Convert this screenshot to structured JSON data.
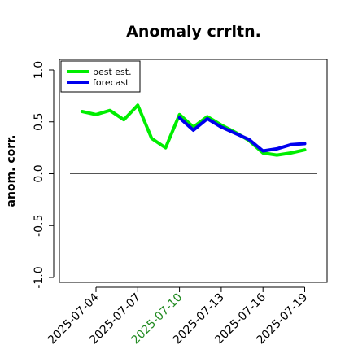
{
  "chart_data": {
    "type": "line",
    "title": "Anomaly crrltn.",
    "xlabel": "",
    "ylabel": "anom. corr.",
    "ylim": [
      -1.0,
      1.0
    ],
    "yticks": [
      "-1.0",
      "-0.5",
      "0.0",
      "0.5",
      "1.0"
    ],
    "xticks": [
      "2025-07-04",
      "2025-07-07",
      "2025-07-10",
      "2025-07-13",
      "2025-07-16",
      "2025-07-19"
    ],
    "highlight_xtick": "2025-07-10",
    "highlight_color": "#228B22",
    "reference_line": 0.0,
    "legend_position": "top-left",
    "series": [
      {
        "name": "best est.",
        "color": "#00ee00",
        "x": [
          "2025-07-03",
          "2025-07-04",
          "2025-07-05",
          "2025-07-06",
          "2025-07-07",
          "2025-07-08",
          "2025-07-09",
          "2025-07-10",
          "2025-07-11",
          "2025-07-12",
          "2025-07-13",
          "2025-07-14",
          "2025-07-15",
          "2025-07-16",
          "2025-07-17",
          "2025-07-18",
          "2025-07-19"
        ],
        "values": [
          0.6,
          0.57,
          0.61,
          0.52,
          0.66,
          0.34,
          0.25,
          0.57,
          0.45,
          0.55,
          0.47,
          0.4,
          0.32,
          0.2,
          0.18,
          0.2,
          0.23
        ]
      },
      {
        "name": "forecast",
        "color": "#0000ee",
        "x": [
          "2025-07-10",
          "2025-07-11",
          "2025-07-12",
          "2025-07-13",
          "2025-07-14",
          "2025-07-15",
          "2025-07-16",
          "2025-07-17",
          "2025-07-18",
          "2025-07-19"
        ],
        "values": [
          0.54,
          0.42,
          0.53,
          0.45,
          0.39,
          0.33,
          0.22,
          0.24,
          0.28,
          0.29
        ]
      }
    ]
  }
}
